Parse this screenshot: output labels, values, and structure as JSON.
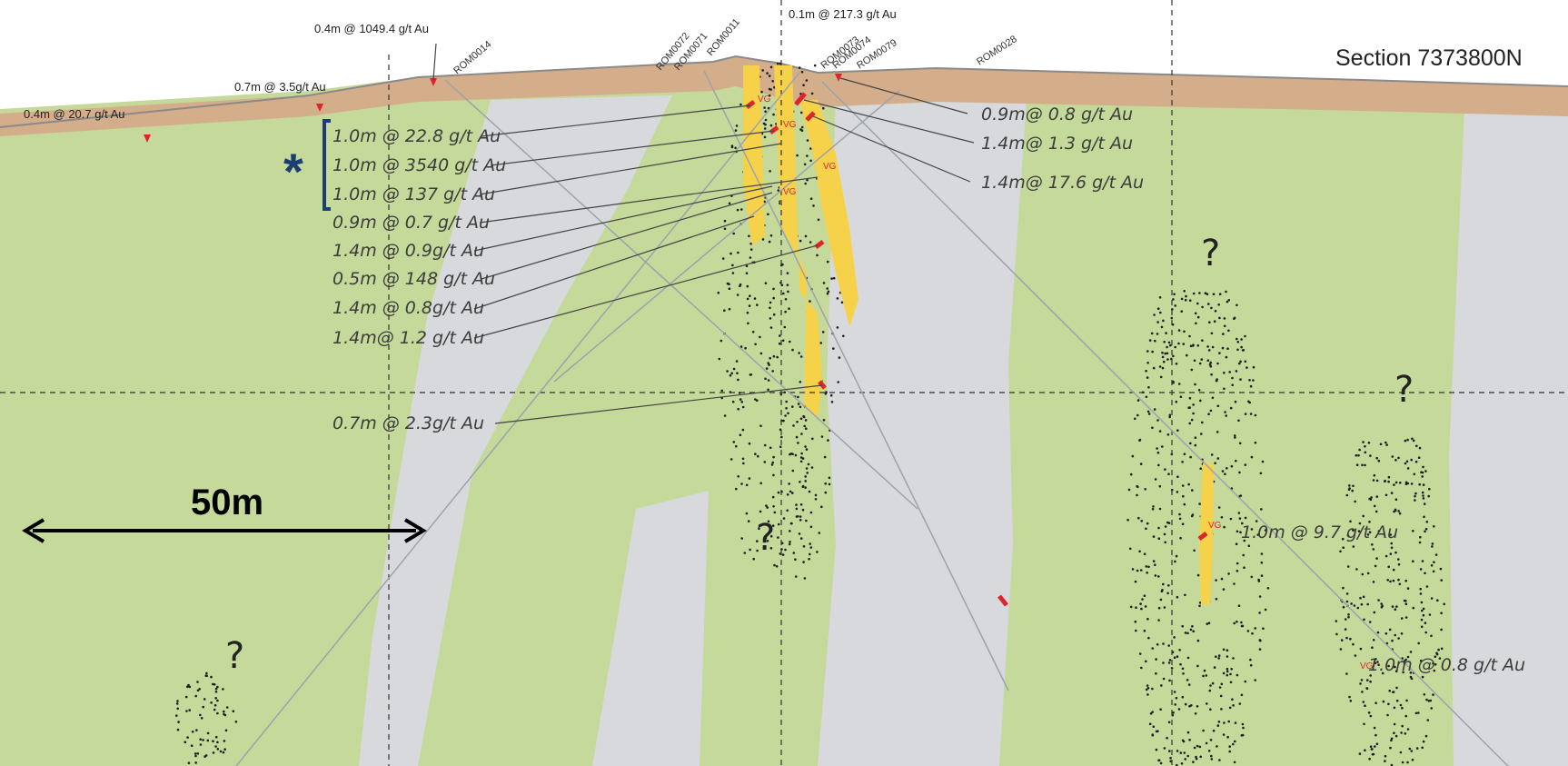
{
  "section_title": "Section 7373800N",
  "scale_bar": {
    "label": "50m"
  },
  "asterisk": "*",
  "unknown_marker": "?",
  "vg_label": "VG",
  "surface_intercepts": [
    "0.4m @ 20.7 g/t Au",
    "0.7m @ 3.5g/t Au",
    "0.4m @ 1049.4 g/t Au",
    "0.1m @ 217.3 g/t Au"
  ],
  "drillholes": [
    "ROM0014",
    "ROM0072",
    "ROM0071",
    "ROM0011",
    "ROM0073",
    "ROM0074",
    "ROM0079",
    "ROM0028"
  ],
  "left_intercepts": [
    "1.0m @ 22.8 g/t Au",
    "1.0m @ 3540 g/t Au",
    "1.0m @ 137 g/t Au",
    "0.9m @ 0.7 g/t Au",
    "1.4m @ 0.9g/t Au",
    "0.5m @ 148 g/t Au",
    "1.4m @ 0.8g/t Au",
    "1.4m@ 1.2 g/t Au",
    "0.7m @ 2.3g/t Au"
  ],
  "right_intercepts": [
    "0.9m@ 0.8 g/t Au",
    "1.4m@ 1.3 g/t Au",
    "1.4m@ 17.6 g/t Au"
  ],
  "far_right_intercepts": [
    "1.0m @ 9.7 g/t Au",
    "1.0m @ 0.8 g/t Au"
  ],
  "colors": {
    "green_unit": "#c5d99a",
    "grey_unit": "#d7d9dc",
    "regolith": "#d4ad8a",
    "vein": "#f6d24a",
    "intercept": "#e0242c",
    "bracket": "#1d3e73"
  }
}
